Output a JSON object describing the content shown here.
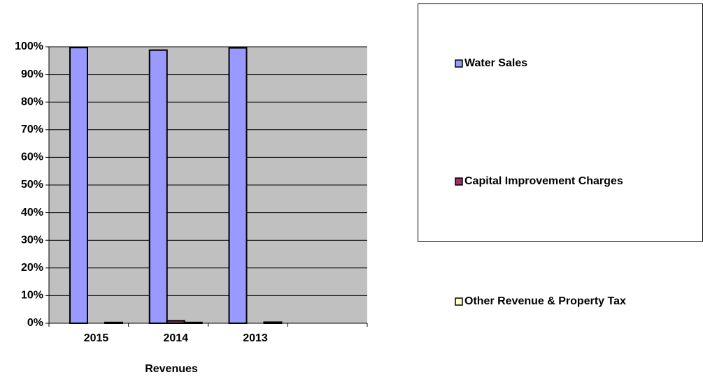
{
  "chart_data": {
    "type": "bar",
    "x_label": "Revenues",
    "categories": [
      "2015",
      "2014",
      "2013",
      null
    ],
    "series": [
      {
        "name": "Water Sales",
        "color": "#9999ff",
        "values": [
          99.7,
          98.8,
          99.6,
          null
        ]
      },
      {
        "name": "Capital Improvement Charges",
        "color": "#993366",
        "values": [
          0,
          0.9,
          0,
          null
        ]
      },
      {
        "name": "Other Revenue & Property Tax",
        "color": "#ffffcc",
        "values": [
          0.3,
          0.3,
          0.4,
          null
        ]
      }
    ],
    "ylim": [
      0,
      100
    ],
    "yticks": [
      {
        "value": 0,
        "label": "0%"
      },
      {
        "value": 10,
        "label": "10%"
      },
      {
        "value": 20,
        "label": "20%"
      },
      {
        "value": 30,
        "label": "30%"
      },
      {
        "value": 40,
        "label": "40%"
      },
      {
        "value": 50,
        "label": "50%"
      },
      {
        "value": 60,
        "label": "60%"
      },
      {
        "value": 70,
        "label": "70%"
      },
      {
        "value": 80,
        "label": "80%"
      },
      {
        "value": 90,
        "label": "90%"
      },
      {
        "value": 100,
        "label": "100%"
      }
    ],
    "grid": true,
    "legend": "right"
  }
}
